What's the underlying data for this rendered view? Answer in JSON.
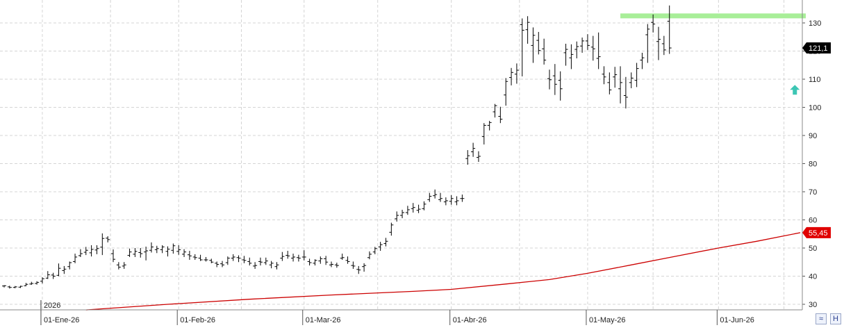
{
  "chart_data": {
    "type": "ohlc",
    "title": "",
    "xlabel": "",
    "ylabel": "",
    "ylim": [
      28,
      137
    ],
    "y_ticks": [
      30,
      40,
      50,
      60,
      70,
      80,
      90,
      100,
      110,
      120,
      130
    ],
    "year_label": "2026",
    "x_month_labels": [
      {
        "label": "01-Ene-26",
        "index": 7
      },
      {
        "label": "01-Feb-26",
        "index": 32
      },
      {
        "label": "01-Mar-26",
        "index": 55
      },
      {
        "label": "01-Abr-26",
        "index": 82
      },
      {
        "label": "01-May-26",
        "index": 107
      },
      {
        "label": "01-Jun-26",
        "index": 131
      }
    ],
    "grid": true,
    "colors": {
      "bars": "#000000",
      "moving_average": "#cc0000",
      "resistance_band": "#a8ee98",
      "arrow": "#3cc6b4",
      "last_price_tag": "#000000",
      "ma_tag": "#e00000"
    },
    "last_price_label": "121,1",
    "last_price_value": 121.1,
    "ma_label": "55,45",
    "ma_value": 55.45,
    "resistance": {
      "value": 132.5,
      "from_index": 113,
      "to_index": 147
    },
    "arrow_marker": {
      "index": 145,
      "value": 106
    },
    "moving_average_points": [
      [
        15,
        28.0
      ],
      [
        30,
        30.0
      ],
      [
        45,
        31.8
      ],
      [
        60,
        33.3
      ],
      [
        75,
        34.6
      ],
      [
        82,
        35.3
      ],
      [
        92,
        37.2
      ],
      [
        100,
        38.8
      ],
      [
        107,
        41.0
      ],
      [
        115,
        44.0
      ],
      [
        123,
        47.0
      ],
      [
        131,
        50.0
      ],
      [
        138,
        52.4
      ],
      [
        146,
        55.45
      ]
    ],
    "ohlc": [
      [
        36.5,
        36.8,
        36.0,
        36.6
      ],
      [
        36.2,
        36.6,
        35.6,
        36.0
      ],
      [
        36.0,
        36.5,
        35.7,
        36.2
      ],
      [
        36.1,
        36.6,
        35.8,
        36.4
      ],
      [
        36.6,
        37.6,
        36.4,
        37.1
      ],
      [
        37.2,
        38.0,
        36.9,
        37.4
      ],
      [
        37.4,
        38.2,
        37.0,
        37.8
      ],
      [
        38.2,
        39.6,
        37.4,
        39.1
      ],
      [
        39.3,
        41.8,
        39.0,
        40.5
      ],
      [
        40.4,
        41.2,
        39.0,
        40.0
      ],
      [
        40.3,
        44.5,
        40.0,
        42.8
      ],
      [
        42.0,
        43.6,
        40.8,
        42.5
      ],
      [
        43.4,
        45.2,
        42.4,
        44.8
      ],
      [
        45.2,
        48.0,
        44.6,
        46.8
      ],
      [
        47.3,
        49.6,
        46.8,
        48.0
      ],
      [
        48.5,
        50.4,
        47.5,
        49.2
      ],
      [
        48.3,
        51.0,
        47.0,
        49.5
      ],
      [
        49.3,
        51.0,
        47.8,
        49.8
      ],
      [
        50.3,
        55.2,
        47.5,
        53.4
      ],
      [
        53.5,
        54.2,
        52.0,
        53.0
      ],
      [
        48.0,
        49.5,
        45.0,
        46.0
      ],
      [
        44.0,
        45.0,
        42.4,
        43.2
      ],
      [
        43.6,
        45.0,
        42.6,
        44.0
      ],
      [
        47.4,
        49.8,
        46.8,
        48.6
      ],
      [
        47.8,
        50.0,
        46.8,
        48.8
      ],
      [
        48.4,
        50.0,
        46.6,
        48.0
      ],
      [
        48.6,
        50.5,
        45.6,
        49.0
      ],
      [
        49.2,
        52.0,
        48.4,
        50.4
      ],
      [
        49.4,
        50.8,
        48.2,
        49.8
      ],
      [
        49.4,
        51.0,
        48.2,
        50.4
      ],
      [
        48.8,
        50.6,
        47.0,
        49.6
      ],
      [
        49.2,
        51.6,
        48.0,
        50.8
      ],
      [
        48.8,
        51.0,
        47.6,
        49.4
      ],
      [
        47.8,
        49.6,
        46.8,
        48.6
      ],
      [
        47.6,
        49.0,
        45.8,
        47.2
      ],
      [
        46.8,
        47.8,
        45.8,
        46.6
      ],
      [
        46.4,
        47.6,
        45.4,
        45.8
      ],
      [
        45.8,
        46.8,
        45.2,
        45.8
      ],
      [
        45.6,
        46.2,
        44.6,
        45.0
      ],
      [
        44.6,
        45.2,
        43.2,
        44.2
      ],
      [
        44.4,
        45.4,
        43.2,
        44.0
      ],
      [
        44.8,
        47.0,
        44.0,
        46.4
      ],
      [
        46.4,
        47.8,
        45.4,
        46.8
      ],
      [
        46.6,
        47.4,
        45.0,
        46.4
      ],
      [
        45.8,
        47.2,
        44.6,
        45.6
      ],
      [
        45.2,
        46.6,
        43.8,
        44.6
      ],
      [
        43.6,
        45.0,
        42.6,
        43.8
      ],
      [
        45.2,
        46.6,
        43.8,
        45.0
      ],
      [
        44.8,
        46.6,
        44.0,
        45.4
      ],
      [
        44.0,
        45.4,
        42.8,
        44.6
      ],
      [
        43.4,
        45.0,
        42.4,
        44.0
      ],
      [
        46.4,
        48.6,
        45.4,
        47.0
      ],
      [
        47.4,
        49.0,
        46.2,
        47.2
      ],
      [
        46.4,
        48.0,
        45.2,
        46.8
      ],
      [
        46.6,
        47.6,
        45.2,
        46.4
      ],
      [
        46.8,
        49.2,
        45.6,
        46.8
      ],
      [
        45.2,
        46.2,
        43.8,
        44.8
      ],
      [
        44.6,
        46.0,
        43.8,
        45.6
      ],
      [
        45.4,
        47.0,
        44.4,
        46.2
      ],
      [
        46.2,
        47.2,
        44.0,
        45.0
      ],
      [
        44.0,
        45.2,
        43.2,
        44.2
      ],
      [
        44.0,
        44.8,
        43.0,
        43.8
      ],
      [
        46.4,
        48.0,
        45.8,
        46.6
      ],
      [
        45.6,
        47.0,
        44.4,
        45.2
      ],
      [
        43.8,
        45.2,
        42.6,
        43.6
      ],
      [
        42.4,
        43.6,
        40.8,
        42.2
      ],
      [
        43.4,
        44.6,
        41.6,
        43.8
      ],
      [
        46.6,
        48.8,
        46.0,
        47.8
      ],
      [
        48.6,
        50.4,
        47.8,
        49.8
      ],
      [
        50.4,
        52.2,
        49.0,
        51.2
      ],
      [
        51.6,
        53.6,
        50.6,
        52.4
      ],
      [
        55.6,
        59.0,
        54.4,
        58.2
      ],
      [
        60.4,
        63.0,
        59.4,
        61.6
      ],
      [
        61.6,
        63.6,
        60.6,
        62.6
      ],
      [
        62.6,
        65.0,
        61.8,
        63.6
      ],
      [
        64.0,
        66.0,
        62.6,
        64.4
      ],
      [
        63.4,
        65.4,
        62.4,
        63.8
      ],
      [
        64.0,
        66.6,
        63.4,
        65.6
      ],
      [
        67.2,
        69.6,
        66.4,
        68.4
      ],
      [
        68.6,
        70.8,
        67.6,
        69.0
      ],
      [
        67.2,
        69.6,
        66.4,
        67.6
      ],
      [
        66.4,
        68.0,
        65.2,
        66.8
      ],
      [
        66.6,
        68.8,
        65.4,
        67.6
      ],
      [
        66.4,
        68.4,
        65.2,
        66.8
      ],
      [
        67.6,
        69.0,
        66.4,
        67.6
      ],
      [
        81.8,
        84.8,
        79.6,
        82.8
      ],
      [
        84.2,
        87.4,
        82.4,
        85.4
      ],
      [
        82.2,
        84.4,
        80.6,
        82.6
      ],
      [
        89.6,
        94.4,
        86.8,
        93.6
      ],
      [
        93.6,
        95.2,
        91.8,
        94.6
      ],
      [
        98.4,
        101.2,
        96.4,
        100.6
      ],
      [
        96.8,
        100.2,
        94.4,
        95.8
      ],
      [
        104.4,
        110.4,
        100.6,
        109.2
      ],
      [
        110.6,
        114.0,
        107.8,
        112.4
      ],
      [
        111.8,
        115.6,
        108.4,
        113.2
      ],
      [
        129.4,
        131.6,
        111.0,
        127.4
      ],
      [
        127.6,
        132.4,
        122.6,
        130.2
      ],
      [
        122.0,
        128.4,
        115.8,
        125.6
      ],
      [
        123.8,
        126.8,
        118.8,
        120.2
      ],
      [
        120.8,
        124.4,
        115.2,
        116.8
      ],
      [
        110.2,
        113.4,
        106.4,
        109.8
      ],
      [
        111.2,
        115.4,
        104.4,
        108.2
      ],
      [
        109.6,
        112.8,
        102.4,
        106.6
      ],
      [
        119.4,
        122.6,
        114.8,
        120.6
      ],
      [
        117.6,
        122.4,
        113.6,
        118.8
      ],
      [
        120.6,
        123.4,
        117.4,
        121.6
      ],
      [
        121.8,
        124.8,
        119.4,
        123.6
      ],
      [
        123.6,
        126.0,
        120.4,
        122.0
      ],
      [
        121.4,
        125.4,
        116.6,
        120.8
      ],
      [
        117.4,
        126.6,
        113.6,
        118.0
      ],
      [
        111.8,
        114.6,
        108.2,
        110.8
      ],
      [
        108.8,
        112.4,
        104.6,
        106.2
      ],
      [
        110.8,
        114.4,
        107.0,
        111.6
      ],
      [
        106.6,
        114.6,
        101.4,
        108.8
      ],
      [
        104.2,
        110.8,
        99.6,
        103.6
      ],
      [
        108.8,
        112.4,
        106.8,
        110.4
      ],
      [
        109.6,
        115.8,
        107.2,
        113.8
      ],
      [
        116.8,
        119.4,
        113.6,
        117.6
      ],
      [
        125.8,
        129.6,
        115.8,
        127.8
      ],
      [
        130.2,
        133.0,
        126.6,
        129.6
      ],
      [
        123.4,
        128.6,
        116.8,
        124.2
      ],
      [
        122.6,
        125.4,
        118.6,
        120.4
      ],
      [
        130.6,
        136.2,
        119.0,
        121.1
      ]
    ]
  }
}
